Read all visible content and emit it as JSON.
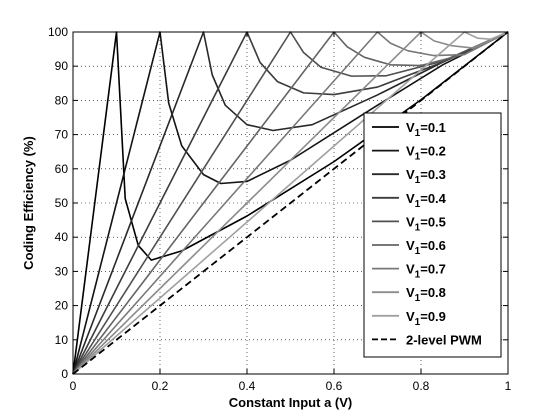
{
  "chart_data": {
    "type": "line",
    "xlabel": "Constant Input a (V)",
    "ylabel": "Coding Efficiency (%)",
    "xlim": [
      0,
      1
    ],
    "ylim": [
      0,
      100
    ],
    "x_ticks": [
      0,
      0.2,
      0.4,
      0.6,
      0.8,
      1
    ],
    "y_ticks": [
      0,
      10,
      20,
      30,
      40,
      50,
      60,
      70,
      80,
      90,
      100
    ],
    "grid": true,
    "legend_position": "right",
    "series": [
      {
        "name": "V1=0.1",
        "name_main": "V",
        "name_sub": "1",
        "name_rest": "=0.1",
        "v1": 0.1,
        "color": "#000000",
        "dash": "solid",
        "x": [
          0,
          0.02,
          0.04,
          0.06,
          0.08,
          0.1,
          0.12,
          0.15,
          0.18,
          0.25,
          0.4,
          0.6,
          0.8,
          1.0
        ],
        "y": [
          0,
          20,
          40,
          60,
          80,
          100,
          51.3,
          37.6,
          33.3,
          36,
          46.2,
          62.1,
          80.2,
          100
        ]
      },
      {
        "name": "V1=0.2",
        "name_main": "V",
        "name_sub": "1",
        "name_rest": "=0.2",
        "v1": 0.2,
        "color": "#141414",
        "dash": "solid",
        "x": [
          0,
          0.05,
          0.1,
          0.15,
          0.2,
          0.22,
          0.25,
          0.3,
          0.34,
          0.4,
          0.5,
          0.7,
          0.85,
          1.0
        ],
        "y": [
          0,
          25,
          50,
          75,
          100,
          79.2,
          66.7,
          58.3,
          55.7,
          56.3,
          62.5,
          78.6,
          90.4,
          100
        ]
      },
      {
        "name": "V1=0.3",
        "name_main": "V",
        "name_sub": "1",
        "name_rest": "=0.3",
        "v1": 0.3,
        "color": "#282828",
        "dash": "solid",
        "x": [
          0,
          0.1,
          0.2,
          0.3,
          0.32,
          0.35,
          0.4,
          0.46,
          0.55,
          0.7,
          0.85,
          1.0
        ],
        "y": [
          0,
          33.3,
          66.7,
          100,
          87.5,
          78.6,
          72.9,
          71.2,
          72.9,
          81.6,
          91.2,
          100
        ]
      },
      {
        "name": "V1=0.4",
        "name_main": "V",
        "name_sub": "1",
        "name_rest": "=0.4",
        "v1": 0.4,
        "color": "#3c3c3c",
        "dash": "solid",
        "x": [
          0,
          0.1,
          0.2,
          0.3,
          0.4,
          0.43,
          0.47,
          0.53,
          0.6,
          0.7,
          0.85,
          1.0
        ],
        "y": [
          0,
          25,
          50,
          75,
          100,
          91.1,
          85.5,
          82.2,
          81.7,
          83.9,
          91.2,
          100
        ]
      },
      {
        "name": "V1=0.5",
        "name_main": "V",
        "name_sub": "1",
        "name_rest": "=0.5",
        "v1": 0.5,
        "color": "#505050",
        "dash": "solid",
        "x": [
          0,
          0.1,
          0.2,
          0.3,
          0.4,
          0.5,
          0.53,
          0.57,
          0.64,
          0.72,
          0.85,
          1.0
        ],
        "y": [
          0,
          20,
          40,
          60,
          80,
          100,
          94,
          89.7,
          87.1,
          87.2,
          91.5,
          100
        ]
      },
      {
        "name": "V1=0.6",
        "name_main": "V",
        "name_sub": "1",
        "name_rest": "=0.6",
        "v1": 0.6,
        "color": "#646464",
        "dash": "solid",
        "x": [
          0,
          0.15,
          0.3,
          0.45,
          0.6,
          0.63,
          0.67,
          0.73,
          0.8,
          0.9,
          1.0
        ],
        "y": [
          0,
          25,
          50,
          75,
          100,
          95.7,
          92.6,
          90.4,
          90.2,
          93.5,
          100
        ]
      },
      {
        "name": "V1=0.7",
        "name_main": "V",
        "name_sub": "1",
        "name_rest": "=0.7",
        "v1": 0.7,
        "color": "#787878",
        "dash": "solid",
        "x": [
          0,
          0.175,
          0.35,
          0.525,
          0.7,
          0.73,
          0.77,
          0.83,
          0.9,
          1.0
        ],
        "y": [
          0,
          25,
          50,
          75,
          100,
          96.7,
          94.5,
          93.1,
          93.4,
          100
        ]
      },
      {
        "name": "V1=0.8",
        "name_main": "V",
        "name_sub": "1",
        "name_rest": "=0.8",
        "v1": 0.8,
        "color": "#8c8c8c",
        "dash": "solid",
        "x": [
          0,
          0.2,
          0.4,
          0.6,
          0.8,
          0.83,
          0.87,
          0.92,
          1.0
        ],
        "y": [
          0,
          25,
          50,
          75,
          100,
          97.4,
          96,
          95.3,
          100
        ]
      },
      {
        "name": "V1=0.9",
        "name_main": "V",
        "name_sub": "1",
        "name_rest": "=0.9",
        "v1": 0.9,
        "color": "#a0a0a0",
        "dash": "solid",
        "x": [
          0,
          0.225,
          0.45,
          0.675,
          0.9,
          0.93,
          0.96,
          1.0
        ],
        "y": [
          0,
          25,
          50,
          75,
          100,
          98.2,
          97.9,
          100
        ]
      },
      {
        "name": "2-level PWM",
        "v1": null,
        "color": "#000000",
        "dash": "dashed",
        "x": [
          0,
          1.0
        ],
        "y": [
          0,
          100
        ]
      }
    ]
  }
}
